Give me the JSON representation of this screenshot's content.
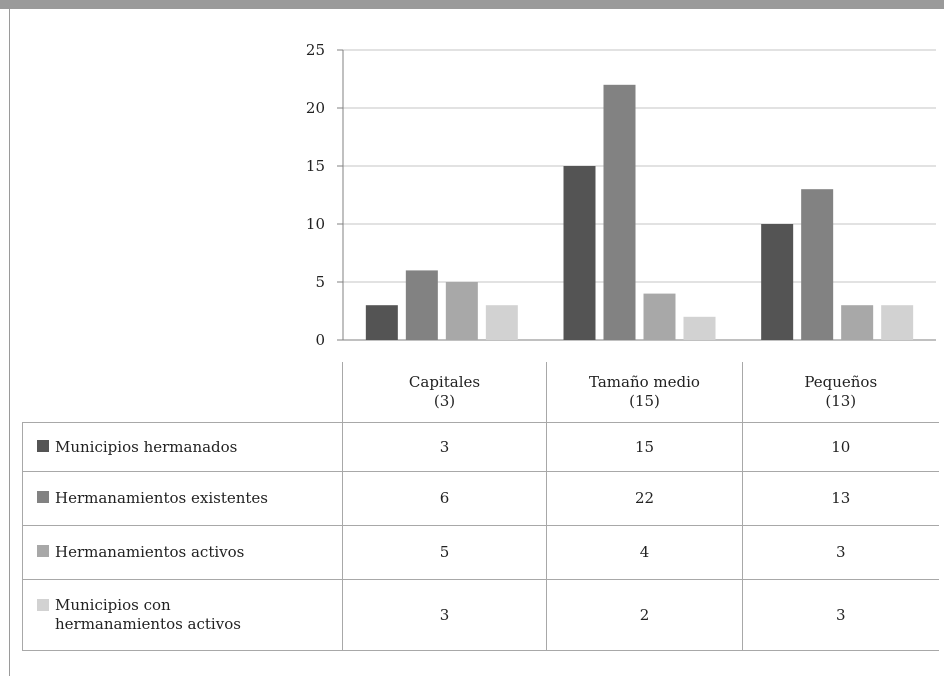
{
  "colors": {
    "frame": "#9a9a9a",
    "axis": "#808080",
    "grid": "#c4c4c4",
    "table_border": "#a8a8a8"
  },
  "chart_data": {
    "type": "bar",
    "categories": [
      "Capitales\n(3)",
      "Tamaño medio\n(15)",
      "Pequeños\n(13)"
    ],
    "category_labels": [
      {
        "line1": "Capitales",
        "line2": "(3)"
      },
      {
        "line1": "Tamaño medio",
        "line2": "(15)"
      },
      {
        "line1": "Pequeños",
        "line2": "(13)"
      }
    ],
    "series": [
      {
        "name": "Municipios hermanados",
        "color": "#545454",
        "values": [
          3,
          15,
          10
        ]
      },
      {
        "name": "Hermanamientos existentes",
        "color": "#828282",
        "values": [
          6,
          22,
          13
        ]
      },
      {
        "name": "Hermanamientos activos",
        "color": "#a8a8a8",
        "values": [
          5,
          4,
          3
        ]
      },
      {
        "name": "Municipios con hermanamientos activos",
        "color": "#d2d2d2",
        "values": [
          3,
          2,
          3
        ]
      }
    ],
    "ylim": [
      0,
      25
    ],
    "yticks": [
      0,
      5,
      10,
      15,
      20,
      25
    ],
    "grid": true,
    "legend": "data-table-below"
  }
}
